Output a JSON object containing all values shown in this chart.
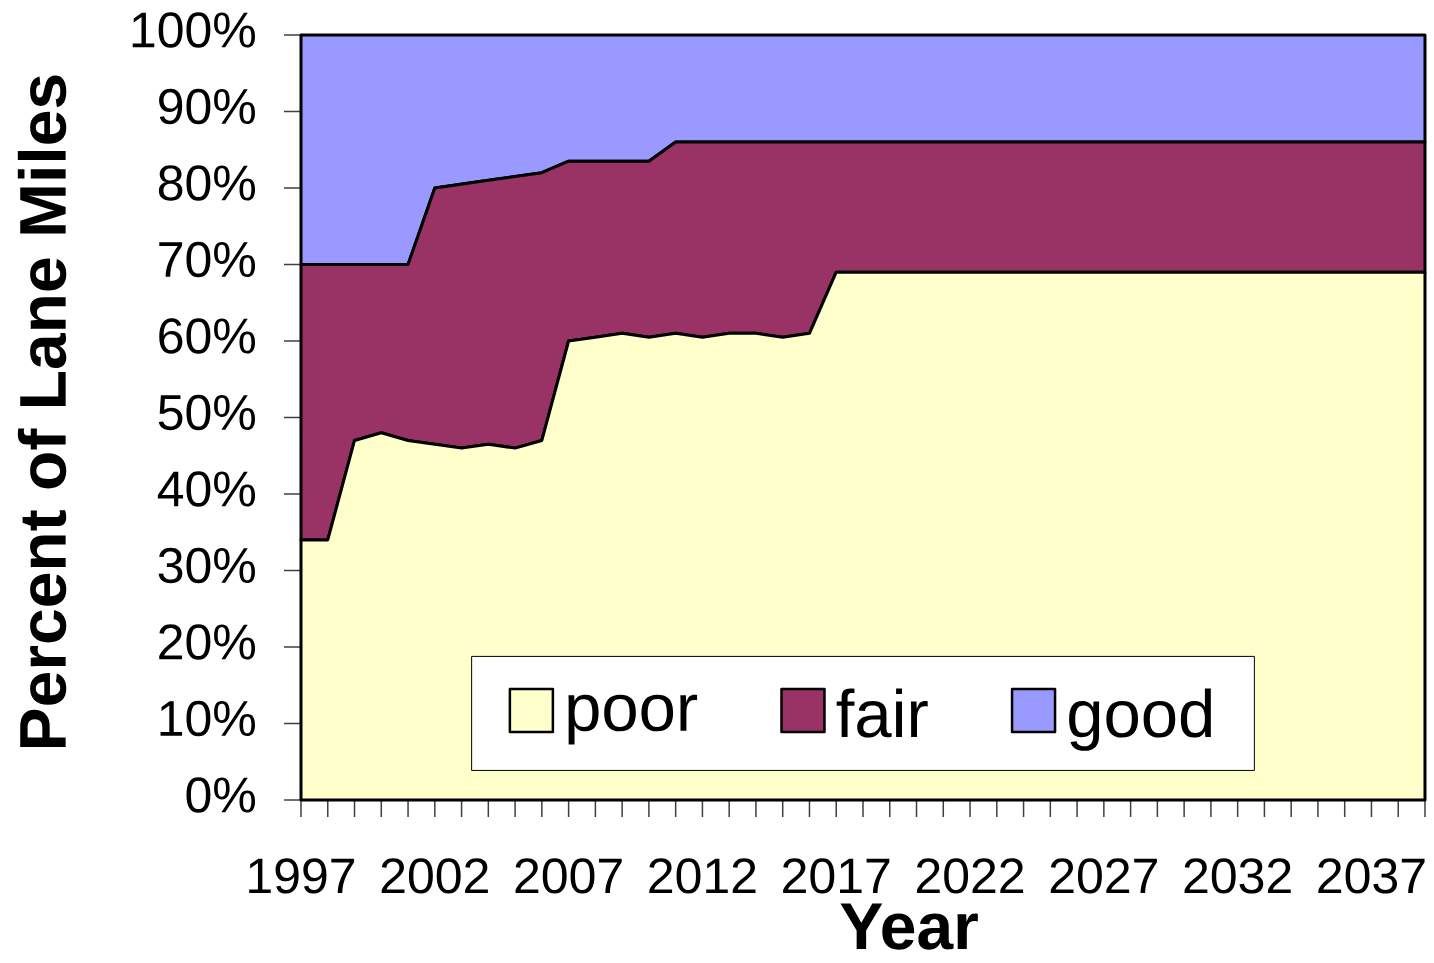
{
  "chart_data": {
    "type": "area",
    "stacked": true,
    "xlabel": "Year",
    "ylabel": "Percent of Lane Miles",
    "categories": [
      "1997",
      null,
      null,
      null,
      null,
      "2002",
      null,
      null,
      null,
      null,
      "2007",
      null,
      null,
      null,
      null,
      "2012",
      null,
      null,
      null,
      null,
      "2017",
      null,
      null,
      null,
      null,
      "2022",
      null,
      null,
      null,
      null,
      "2027",
      null,
      null,
      null,
      null,
      "2032",
      null,
      null,
      null,
      null,
      "2037",
      null,
      null
    ],
    "series": [
      {
        "name": "poor",
        "color": "#ffffcc",
        "values": [
          34,
          34,
          47,
          48,
          47,
          46.5,
          46,
          46.5,
          46,
          47,
          60,
          60.5,
          61,
          60.5,
          61,
          60.5,
          61,
          61,
          60.5,
          61,
          69,
          69,
          69,
          69,
          69,
          69,
          69,
          69,
          69,
          69,
          69,
          69,
          69,
          69,
          69,
          69,
          69,
          69,
          69,
          69,
          69,
          69,
          69
        ]
      },
      {
        "name": "fair",
        "color": "#993366",
        "values": [
          36,
          36,
          23,
          22,
          23,
          33.5,
          34.5,
          34.5,
          35.5,
          35,
          23.5,
          23,
          22.5,
          23,
          25,
          25.5,
          25,
          25,
          25.5,
          25,
          17,
          17,
          17,
          17,
          17,
          17,
          17,
          17,
          17,
          17,
          17,
          17,
          17,
          17,
          17,
          17,
          17,
          17,
          17,
          17,
          17,
          17,
          17
        ]
      },
      {
        "name": "good",
        "color": "#9999ff",
        "values": [
          30,
          30,
          30,
          30,
          30,
          20,
          19.5,
          19,
          18.5,
          18,
          16.5,
          16.5,
          16.5,
          16.5,
          14,
          14,
          14,
          14,
          14,
          14,
          14,
          14,
          14,
          14,
          14,
          14,
          14,
          14,
          14,
          14,
          14,
          14,
          14,
          14,
          14,
          14,
          14,
          14,
          14,
          14,
          14,
          14,
          14
        ]
      }
    ],
    "ylim": [
      0,
      100
    ],
    "yticks": [
      {
        "value": 0,
        "label": "0%"
      },
      {
        "value": 10,
        "label": "10%"
      },
      {
        "value": 20,
        "label": "20%"
      },
      {
        "value": 30,
        "label": "30%"
      },
      {
        "value": 40,
        "label": "40%"
      },
      {
        "value": 50,
        "label": "50%"
      },
      {
        "value": 60,
        "label": "60%"
      },
      {
        "value": 70,
        "label": "70%"
      },
      {
        "value": 80,
        "label": "80%"
      },
      {
        "value": 90,
        "label": "90%"
      },
      {
        "value": 100,
        "label": "100%"
      }
    ],
    "legend": "bottom"
  }
}
